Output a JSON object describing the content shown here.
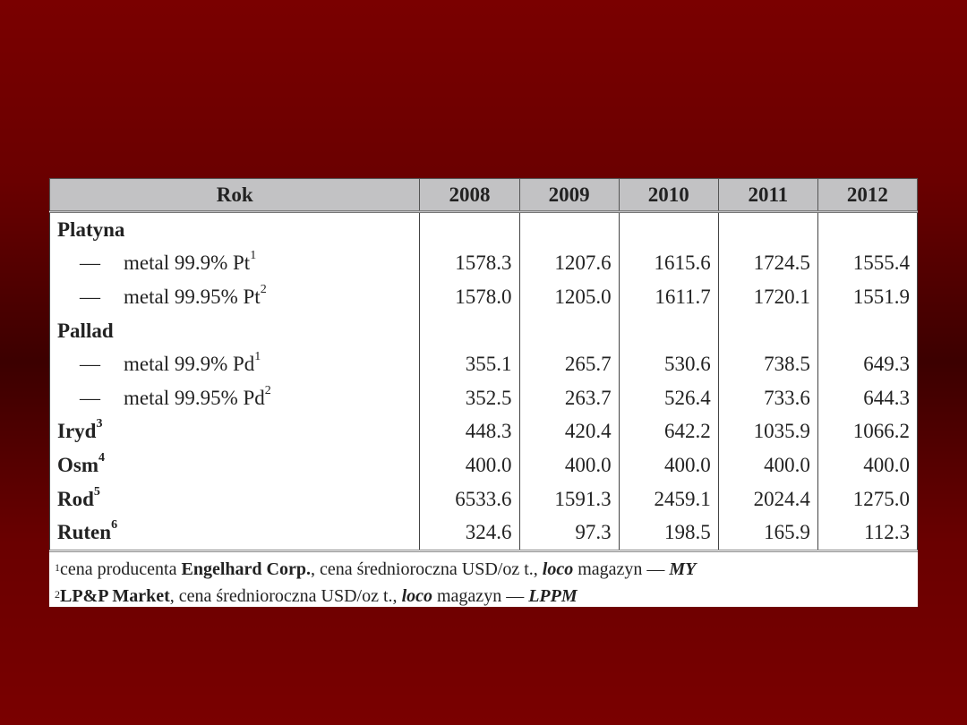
{
  "header": {
    "label": "Rok",
    "years": [
      "2008",
      "2009",
      "2010",
      "2011",
      "2012"
    ]
  },
  "rows": [
    {
      "label": "Platyna",
      "sup": "",
      "type": "group",
      "values": [
        "",
        "",
        "",
        "",
        ""
      ]
    },
    {
      "label": "metal 99.9% Pt",
      "sup": "1",
      "type": "sub",
      "dash": "—",
      "values": [
        "1578.3",
        "1207.6",
        "1615.6",
        "1724.5",
        "1555.4"
      ]
    },
    {
      "label": "metal 99.95% Pt",
      "sup": "2",
      "type": "sub",
      "dash": "—",
      "values": [
        "1578.0",
        "1205.0",
        "1611.7",
        "1720.1",
        "1551.9"
      ]
    },
    {
      "label": "Pallad",
      "sup": "",
      "type": "group",
      "values": [
        "",
        "",
        "",
        "",
        ""
      ]
    },
    {
      "label": "metal 99.9% Pd",
      "sup": "1",
      "type": "sub",
      "dash": "—",
      "values": [
        "355.1",
        "265.7",
        "530.6",
        "738.5",
        "649.3"
      ]
    },
    {
      "label": "metal 99.95% Pd",
      "sup": "2",
      "type": "sub",
      "dash": "—",
      "values": [
        "352.5",
        "263.7",
        "526.4",
        "733.6",
        "644.3"
      ]
    },
    {
      "label": "Iryd",
      "sup": "3",
      "type": "group",
      "values": [
        "448.3",
        "420.4",
        "642.2",
        "1035.9",
        "1066.2"
      ]
    },
    {
      "label": "Osm",
      "sup": "4",
      "type": "group",
      "values": [
        "400.0",
        "400.0",
        "400.0",
        "400.0",
        "400.0"
      ]
    },
    {
      "label": "Rod",
      "sup": "5",
      "type": "group",
      "values": [
        "6533.6",
        "1591.3",
        "2459.1",
        "2024.4",
        "1275.0"
      ]
    },
    {
      "label": "Ruten",
      "sup": "6",
      "type": "group",
      "values": [
        "324.6",
        "97.3",
        "198.5",
        "165.9",
        "112.3"
      ]
    }
  ],
  "footnotes": [
    {
      "num": "1",
      "parts": [
        {
          "t": "cena producenta ",
          "s": ""
        },
        {
          "t": "Engelhard Corp.",
          "s": "b"
        },
        {
          "t": ", cena średnioroczna USD/oz t., ",
          "s": ""
        },
        {
          "t": "loco",
          "s": "bi"
        },
        {
          "t": " magazyn — ",
          "s": ""
        },
        {
          "t": "MY",
          "s": "bi"
        }
      ]
    },
    {
      "num": "2",
      "parts": [
        {
          "t": "LP&P Market",
          "s": "b"
        },
        {
          "t": ", cena średnioroczna USD/oz t., ",
          "s": ""
        },
        {
          "t": "loco",
          "s": "bi"
        },
        {
          "t": " magazyn — ",
          "s": ""
        },
        {
          "t": "LPPM",
          "s": "bi"
        }
      ]
    }
  ]
}
